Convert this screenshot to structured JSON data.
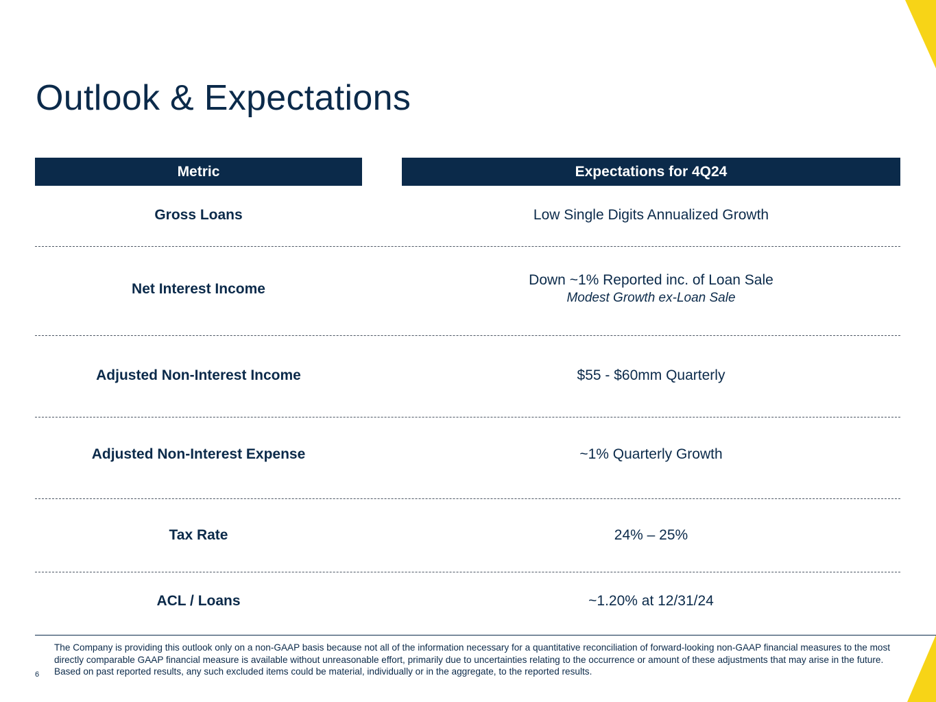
{
  "title": "Outlook & Expectations",
  "table": {
    "headers": {
      "metric": "Metric",
      "expectations": "Expectations for 4Q24"
    },
    "rows": [
      {
        "metric": "Gross Loans",
        "expectation": "Low Single Digits Annualized Growth",
        "sub": ""
      },
      {
        "metric": "Net Interest Income",
        "expectation": "Down ~1% Reported inc. of Loan Sale",
        "sub": "Modest Growth ex-Loan Sale"
      },
      {
        "metric": "Adjusted Non-Interest Income",
        "expectation": "$55 - $60mm Quarterly",
        "sub": ""
      },
      {
        "metric": "Adjusted Non-Interest Expense",
        "expectation": "~1% Quarterly Growth",
        "sub": ""
      },
      {
        "metric": "Tax Rate",
        "expectation": "24% – 25%",
        "sub": ""
      },
      {
        "metric": "ACL / Loans",
        "expectation": "~1.20% at 12/31/24",
        "sub": ""
      }
    ]
  },
  "footnote": "The Company is providing this outlook only on a non-GAAP basis because not all of the information necessary for a quantitative reconciliation of forward-looking non-GAAP financial measures to the most directly comparable GAAP financial measure is available without unreasonable effort, primarily due to uncertainties relating to the occurrence or amount of these adjustments that may arise in the future. Based on past reported results, any such excluded items could be material, individually or in the aggregate, to the reported results.",
  "page_number": "6",
  "colors": {
    "navy": "#0b2a4a",
    "accent": "#f7d417"
  }
}
